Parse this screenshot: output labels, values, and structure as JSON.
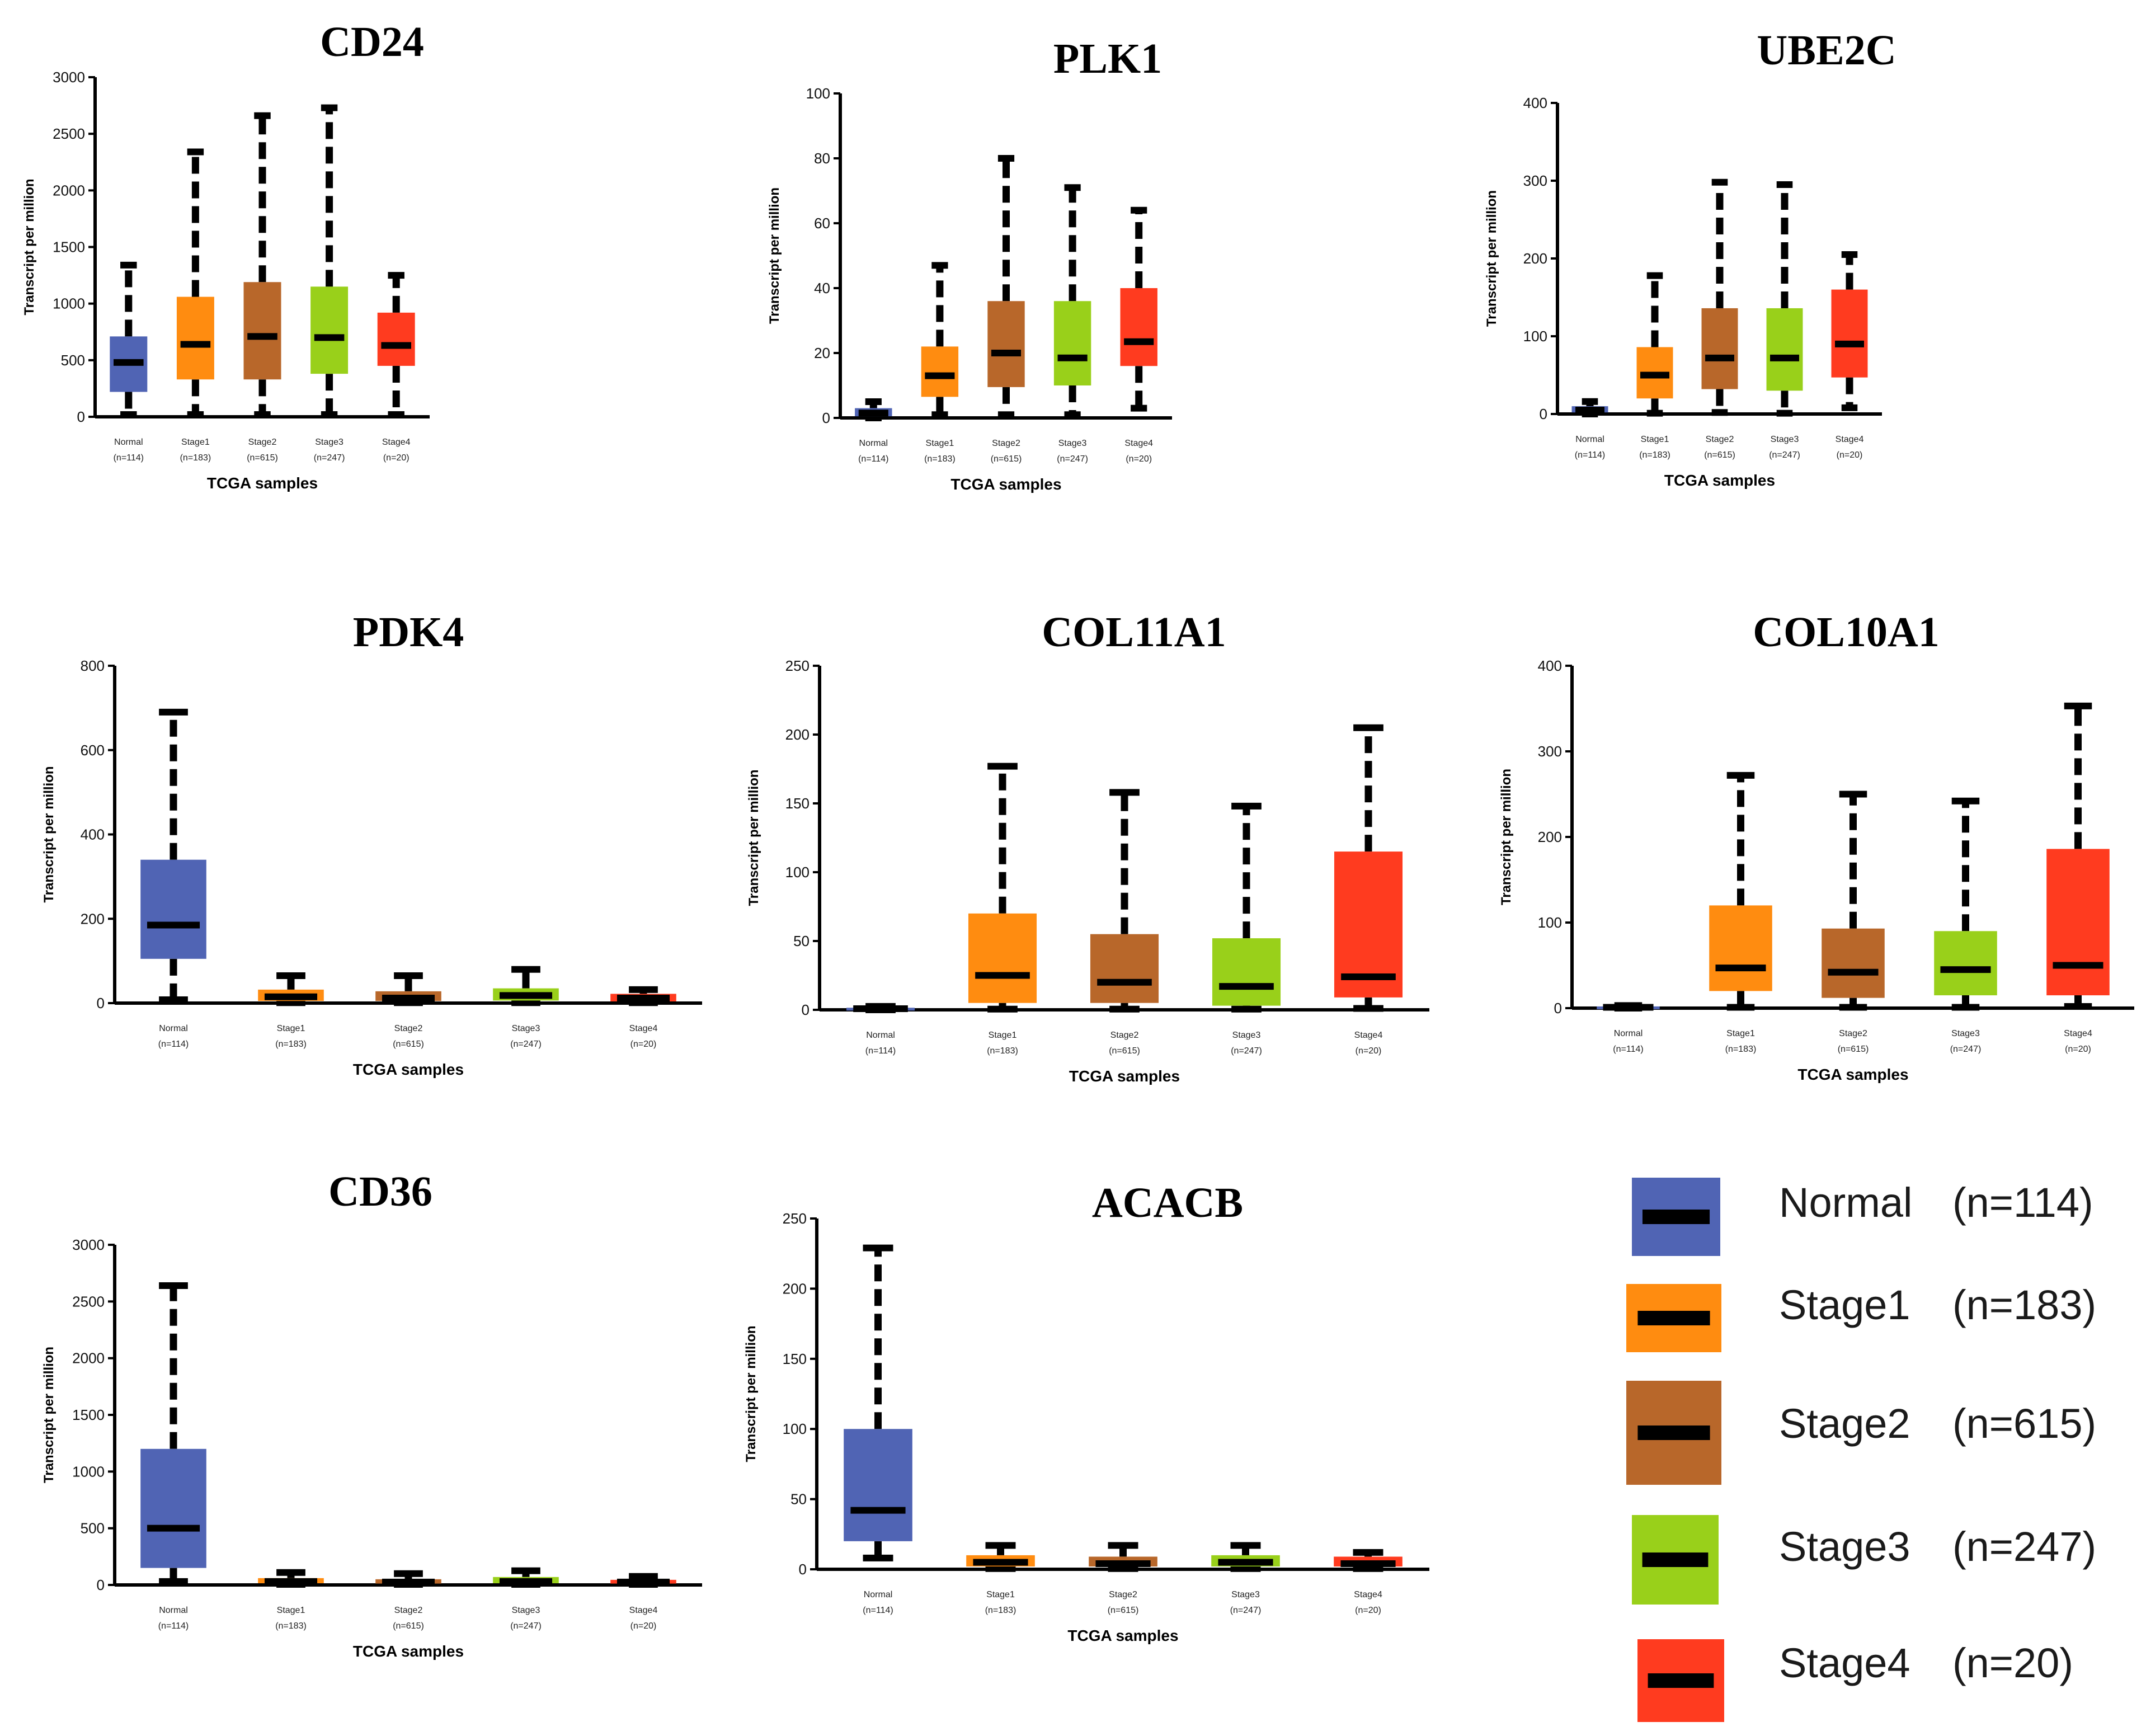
{
  "x_axis_label": "TCGA samples",
  "y_axis_label": "Transcript per million",
  "colors": {
    "Normal": "#5064b4",
    "Stage1": "#ff8c10",
    "Stage2": "#b8672a",
    "Stage3": "#99d01a",
    "Stage4": "#ff3b1f"
  },
  "categories": [
    {
      "name": "Normal",
      "n": "(n=114)"
    },
    {
      "name": "Stage1",
      "n": "(n=183)"
    },
    {
      "name": "Stage2",
      "n": "(n=615)"
    },
    {
      "name": "Stage3",
      "n": "(n=247)"
    },
    {
      "name": "Stage4",
      "n": "(n=20)"
    }
  ],
  "legend": [
    {
      "label": "Normal",
      "n": "(n=114)"
    },
    {
      "label": "Stage1",
      "n": "(n=183)"
    },
    {
      "label": "Stage2",
      "n": "(n=615)"
    },
    {
      "label": "Stage3",
      "n": "(n=247)"
    },
    {
      "label": "Stage4",
      "n": "(n=20)"
    }
  ],
  "chart_data": [
    {
      "type": "box",
      "title": "CD24",
      "xlabel": "TCGA samples",
      "ylabel": "Transcript per million",
      "ylim": [
        0,
        3000
      ],
      "yticks": [
        0,
        500,
        1000,
        1500,
        2000,
        2500,
        3000
      ],
      "boxes": [
        {
          "min": 20,
          "q1": 220,
          "median": 480,
          "q3": 710,
          "max": 1340
        },
        {
          "min": 20,
          "q1": 330,
          "median": 640,
          "q3": 1060,
          "max": 2340
        },
        {
          "min": 20,
          "q1": 330,
          "median": 710,
          "q3": 1190,
          "max": 2660
        },
        {
          "min": 20,
          "q1": 380,
          "median": 700,
          "q3": 1150,
          "max": 2730
        },
        {
          "min": 20,
          "q1": 450,
          "median": 630,
          "q3": 920,
          "max": 1250
        }
      ]
    },
    {
      "type": "box",
      "title": "PLK1",
      "xlabel": "TCGA samples",
      "ylabel": "Transcript per million",
      "ylim": [
        0,
        100
      ],
      "yticks": [
        0,
        20,
        40,
        60,
        80,
        100
      ],
      "boxes": [
        {
          "min": 0,
          "q1": 0.5,
          "median": 1.5,
          "q3": 3,
          "max": 5
        },
        {
          "min": 1,
          "q1": 6.5,
          "median": 13,
          "q3": 22,
          "max": 47
        },
        {
          "min": 1,
          "q1": 9.5,
          "median": 20,
          "q3": 36,
          "max": 80
        },
        {
          "min": 1,
          "q1": 10,
          "median": 18.5,
          "q3": 36,
          "max": 71
        },
        {
          "min": 3,
          "q1": 16,
          "median": 23.5,
          "q3": 40,
          "max": 64
        }
      ]
    },
    {
      "type": "box",
      "title": "UBE2C",
      "xlabel": "TCGA samples",
      "ylabel": "Transcript per million",
      "ylim": [
        0,
        400
      ],
      "yticks": [
        0,
        100,
        200,
        300,
        400
      ],
      "boxes": [
        {
          "min": 0,
          "q1": 2,
          "median": 5,
          "q3": 10,
          "max": 16
        },
        {
          "min": 1,
          "q1": 20,
          "median": 50,
          "q3": 86,
          "max": 178
        },
        {
          "min": 2,
          "q1": 32,
          "median": 72,
          "q3": 136,
          "max": 298
        },
        {
          "min": 1,
          "q1": 30,
          "median": 72,
          "q3": 136,
          "max": 295
        },
        {
          "min": 8,
          "q1": 47,
          "median": 90,
          "q3": 160,
          "max": 205
        }
      ]
    },
    {
      "type": "box",
      "title": "PDK4",
      "xlabel": "TCGA samples",
      "ylabel": "Transcript per million",
      "ylim": [
        0,
        800
      ],
      "yticks": [
        0,
        200,
        400,
        600,
        800
      ],
      "boxes": [
        {
          "min": 8,
          "q1": 105,
          "median": 185,
          "q3": 340,
          "max": 690
        },
        {
          "min": 1,
          "q1": 5,
          "median": 15,
          "q3": 32,
          "max": 65
        },
        {
          "min": 1,
          "q1": 5,
          "median": 12,
          "q3": 28,
          "max": 65
        },
        {
          "min": 1,
          "q1": 6,
          "median": 18,
          "q3": 35,
          "max": 80
        },
        {
          "min": 1,
          "q1": 4,
          "median": 12,
          "q3": 22,
          "max": 32
        }
      ]
    },
    {
      "type": "box",
      "title": "COL11A1",
      "xlabel": "TCGA samples",
      "ylabel": "Transcript per million",
      "ylim": [
        0,
        250
      ],
      "yticks": [
        0,
        50,
        100,
        150,
        200,
        250
      ],
      "boxes": [
        {
          "min": 0,
          "q1": 0.3,
          "median": 0.8,
          "q3": 1.5,
          "max": 2.5
        },
        {
          "min": 0.5,
          "q1": 5,
          "median": 25,
          "q3": 70,
          "max": 177
        },
        {
          "min": 0.5,
          "q1": 5,
          "median": 20,
          "q3": 55,
          "max": 158
        },
        {
          "min": 0.5,
          "q1": 3,
          "median": 17,
          "q3": 52,
          "max": 148
        },
        {
          "min": 1,
          "q1": 9,
          "median": 24,
          "q3": 115,
          "max": 205
        }
      ]
    },
    {
      "type": "box",
      "title": "COL10A1",
      "xlabel": "TCGA samples",
      "ylabel": "Transcript per million",
      "ylim": [
        0,
        400
      ],
      "yticks": [
        0,
        100,
        200,
        300,
        400
      ],
      "boxes": [
        {
          "min": 0,
          "q1": 0.5,
          "median": 1,
          "q3": 2,
          "max": 3
        },
        {
          "min": 1,
          "q1": 20,
          "median": 47,
          "q3": 120,
          "max": 272
        },
        {
          "min": 1,
          "q1": 12,
          "median": 42,
          "q3": 93,
          "max": 250
        },
        {
          "min": 1,
          "q1": 15,
          "median": 45,
          "q3": 90,
          "max": 242
        },
        {
          "min": 2,
          "q1": 15,
          "median": 50,
          "q3": 186,
          "max": 353
        }
      ]
    },
    {
      "type": "box",
      "title": "CD36",
      "xlabel": "TCGA samples",
      "ylabel": "Transcript per million",
      "ylim": [
        0,
        3000
      ],
      "yticks": [
        0,
        500,
        1000,
        1500,
        2000,
        2500,
        3000
      ],
      "boxes": [
        {
          "min": 30,
          "q1": 150,
          "median": 500,
          "q3": 1200,
          "max": 2640
        },
        {
          "min": 5,
          "q1": 15,
          "median": 30,
          "q3": 60,
          "max": 110
        },
        {
          "min": 5,
          "q1": 12,
          "median": 25,
          "q3": 50,
          "max": 100
        },
        {
          "min": 5,
          "q1": 15,
          "median": 30,
          "q3": 70,
          "max": 125
        },
        {
          "min": 5,
          "q1": 12,
          "median": 25,
          "q3": 45,
          "max": 75
        }
      ]
    },
    {
      "type": "box",
      "title": "ACACB",
      "xlabel": "TCGA samples",
      "ylabel": "Transcript per million",
      "ylim": [
        0,
        250
      ],
      "yticks": [
        0,
        50,
        100,
        150,
        200,
        250
      ],
      "boxes": [
        {
          "min": 8,
          "q1": 20,
          "median": 42,
          "q3": 100,
          "max": 229
        },
        {
          "min": 0.5,
          "q1": 2,
          "median": 5,
          "q3": 10,
          "max": 17
        },
        {
          "min": 0.5,
          "q1": 2,
          "median": 4,
          "q3": 9,
          "max": 17
        },
        {
          "min": 0.5,
          "q1": 2,
          "median": 5,
          "q3": 10,
          "max": 17
        },
        {
          "min": 0.5,
          "q1": 2,
          "median": 4,
          "q3": 9,
          "max": 12
        }
      ]
    }
  ]
}
